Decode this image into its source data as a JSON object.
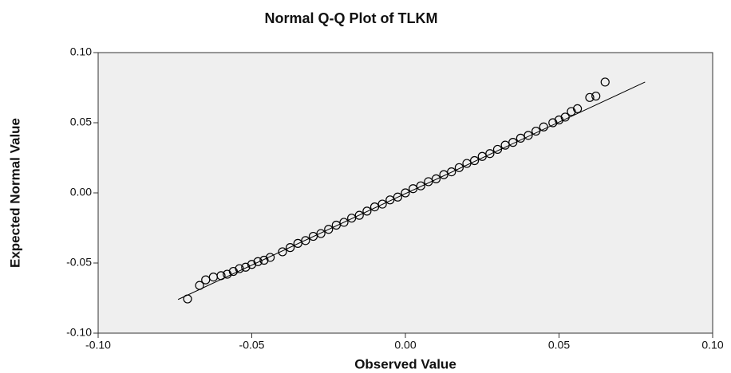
{
  "chart_data": {
    "type": "scatter",
    "title": "Normal Q-Q Plot of TLKM",
    "xlabel": "Observed Value",
    "ylabel": "Expected Normal Value",
    "x": [
      -0.0709,
      -0.067,
      -0.065,
      -0.0625,
      -0.06,
      -0.058,
      -0.056,
      -0.054,
      -0.052,
      -0.05,
      -0.048,
      -0.046,
      -0.044,
      -0.04,
      -0.0375,
      -0.035,
      -0.0325,
      -0.03,
      -0.0275,
      -0.025,
      -0.0225,
      -0.02,
      -0.0175,
      -0.015,
      -0.0125,
      -0.01,
      -0.0075,
      -0.005,
      -0.0025,
      0,
      0.0025,
      0.005,
      0.0075,
      0.01,
      0.0125,
      0.015,
      0.0175,
      0.02,
      0.0225,
      0.025,
      0.0275,
      0.03,
      0.0325,
      0.035,
      0.0375,
      0.04,
      0.0425,
      0.045,
      0.048,
      0.05,
      0.052,
      0.054,
      0.056,
      0.06,
      0.062,
      0.065
    ],
    "values": [
      -0.0756,
      -0.066,
      -0.062,
      -0.06,
      -0.059,
      -0.058,
      -0.056,
      -0.054,
      -0.053,
      -0.051,
      -0.049,
      -0.048,
      -0.046,
      -0.042,
      -0.039,
      -0.036,
      -0.034,
      -0.031,
      -0.029,
      -0.026,
      -0.023,
      -0.021,
      -0.018,
      -0.016,
      -0.013,
      -0.01,
      -0.008,
      -0.005,
      -0.003,
      0,
      0.003,
      0.005,
      0.008,
      0.01,
      0.013,
      0.015,
      0.018,
      0.021,
      0.023,
      0.026,
      0.028,
      0.031,
      0.034,
      0.036,
      0.039,
      0.041,
      0.044,
      0.047,
      0.05,
      0.052,
      0.054,
      0.058,
      0.06,
      0.068,
      0.069,
      0.079
    ],
    "reference_line": {
      "x": [
        -0.074,
        0.078
      ],
      "values": [
        -0.076,
        0.079
      ]
    },
    "xlim": [
      -0.1,
      0.1
    ],
    "ylim": [
      -0.1,
      0.1
    ],
    "xticks": [
      {
        "value": -0.1,
        "label": "-0.10"
      },
      {
        "value": -0.05,
        "label": "-0.05"
      },
      {
        "value": 0,
        "label": "0.00"
      },
      {
        "value": 0.05,
        "label": "0.05"
      },
      {
        "value": 0.1,
        "label": "0.10"
      }
    ],
    "yticks": [
      {
        "value": -0.1,
        "label": "-0.10"
      },
      {
        "value": -0.05,
        "label": "-0.05"
      },
      {
        "value": 0,
        "label": "0.00"
      },
      {
        "value": 0.05,
        "label": "0.05"
      },
      {
        "value": 0.1,
        "label": "0.10"
      }
    ],
    "color": "#000000",
    "grid": false
  }
}
